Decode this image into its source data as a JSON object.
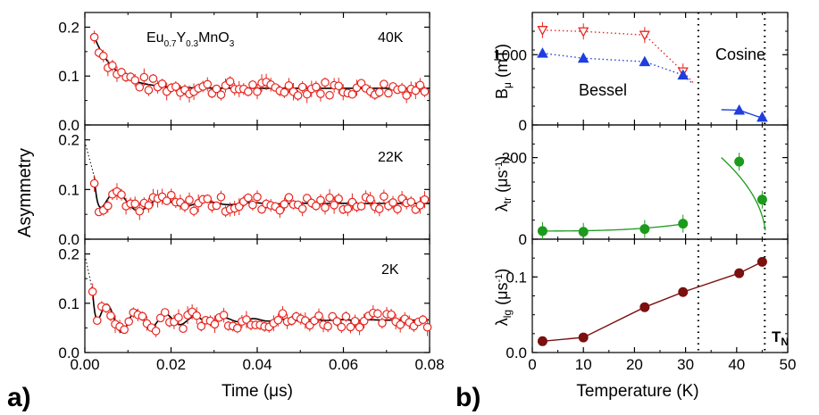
{
  "panel_labels": {
    "a": "a)",
    "b": "b)"
  },
  "colors": {
    "red": "#e8261f",
    "blue": "#1f3ee0",
    "green": "#1c9a1c",
    "maroon": "#7a1010",
    "black": "#000000"
  },
  "chart_data": [
    {
      "type": "scatter",
      "panel": "a",
      "annotation": "Eu0.7Y0.3MnO3",
      "compound": {
        "base1": "Eu",
        "sub1": "0.7",
        "base2": "Y",
        "sub2": "0.3",
        "base3": "MnO",
        "sub3": "3"
      },
      "xlabel": "Time (μs)",
      "ylabel": "Asymmetry",
      "xlim": [
        0,
        0.08
      ],
      "x_ticks": [
        "0.00",
        "0.02",
        "0.04",
        "0.06",
        "0.08"
      ],
      "y_ticks": [
        "0.0",
        "0.1",
        "0.2"
      ],
      "subplots": [
        {
          "label": "40K",
          "ylim": [
            0,
            0.23
          ],
          "fit": {
            "a0": 0.18,
            "t0": 0.0022,
            "ainf": 0.075,
            "rel": 0.0048,
            "amp": 0,
            "period": 0.012
          }
        },
        {
          "label": "22K",
          "ylim": [
            0,
            0.23
          ],
          "fit": {
            "a0": 0.125,
            "t0": 0.0022,
            "ainf": 0.072,
            "rel": 0.012,
            "amp": 0.035,
            "period": 0.0105
          }
        },
        {
          "label": "2K",
          "ylim": [
            0,
            0.23
          ],
          "fit": {
            "a0": 0.125,
            "t0": 0.0018,
            "ainf": 0.066,
            "rel": 0.014,
            "amp": 0.04,
            "period": 0.0068
          }
        }
      ]
    },
    {
      "type": "line",
      "panel": "b",
      "xlabel": "Temperature (K)",
      "xlim": [
        0,
        50
      ],
      "x_ticks": [
        "0",
        "10",
        "20",
        "30",
        "40",
        "50"
      ],
      "vlines": [
        32.5,
        45.5
      ],
      "subplots": [
        {
          "ylabel": "Bμ (mT)",
          "ylim": [
            0,
            1600
          ],
          "y_ticks": [
            "0",
            "1000"
          ],
          "annotations": [
            "Cosine",
            "Bessel"
          ],
          "series": [
            {
              "marker": "triangle-down-open",
              "color": "#e8261f",
              "x": [
                2,
                10,
                22,
                29.5
              ],
              "y": [
                1350,
                1330,
                1280,
                760
              ]
            },
            {
              "marker": "triangle-up",
              "color": "#1f3ee0",
              "x": [
                2,
                10,
                22,
                29.5,
                40.5,
                45
              ],
              "y": [
                1020,
                950,
                900,
                710,
                210,
                110
              ]
            }
          ]
        },
        {
          "ylabel": "λtr (μs⁻¹)",
          "ylim": [
            0,
            280
          ],
          "y_ticks": [
            "0",
            "200"
          ],
          "series": [
            {
              "marker": "circle",
              "color": "#1c9a1c",
              "x": [
                2,
                10,
                22,
                29.5,
                40.5,
                45
              ],
              "y": [
                20,
                18,
                25,
                38,
                190,
                97
              ]
            }
          ]
        },
        {
          "ylabel": "λlg (μs⁻¹)",
          "ylim": [
            0,
            0.15
          ],
          "y_ticks": [
            "0.0",
            "0.1"
          ],
          "annotations": [
            "TN"
          ],
          "series": [
            {
              "marker": "circle",
              "color": "#7a1010",
              "x": [
                2,
                10,
                22,
                29.5,
                40.5,
                45
              ],
              "y": [
                0.015,
                0.02,
                0.06,
                0.08,
                0.105,
                0.12
              ]
            }
          ]
        }
      ]
    }
  ]
}
